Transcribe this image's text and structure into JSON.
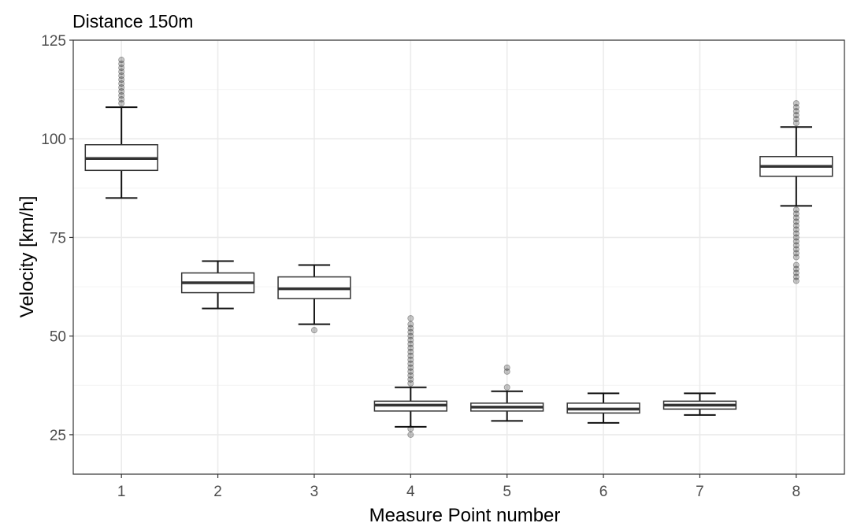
{
  "chart_data": {
    "type": "boxplot",
    "title": "Distance 150m",
    "xlabel": "Measure Point number",
    "ylabel": "Velocity [km/h]",
    "categories": [
      "1",
      "2",
      "3",
      "4",
      "5",
      "6",
      "7",
      "8"
    ],
    "ylim": [
      15,
      125
    ],
    "yticks": [
      25,
      50,
      75,
      100,
      125
    ],
    "yticks_minor": [
      37.5,
      62.5,
      87.5,
      112.5
    ],
    "grid": true,
    "legend": "none",
    "boxes": [
      {
        "category": "1",
        "q1": 92,
        "median": 95,
        "q3": 98.5,
        "whisker_low": 85,
        "whisker_high": 108,
        "outliers": [
          109,
          110,
          111,
          112,
          113,
          114,
          115,
          116,
          117,
          118,
          119,
          120
        ]
      },
      {
        "category": "2",
        "q1": 61,
        "median": 63.5,
        "q3": 66,
        "whisker_low": 57,
        "whisker_high": 69,
        "outliers": []
      },
      {
        "category": "3",
        "q1": 59.5,
        "median": 62,
        "q3": 65,
        "whisker_low": 53,
        "whisker_high": 68,
        "outliers": [
          51.5
        ]
      },
      {
        "category": "4",
        "q1": 31,
        "median": 32.5,
        "q3": 33.5,
        "whisker_low": 27,
        "whisker_high": 37,
        "outliers": [
          25,
          26.5,
          38,
          39,
          40,
          41,
          42,
          43,
          44,
          45,
          46,
          47,
          48,
          49,
          50,
          51,
          52,
          53,
          54.5
        ]
      },
      {
        "category": "5",
        "q1": 31,
        "median": 32,
        "q3": 33,
        "whisker_low": 28.5,
        "whisker_high": 36,
        "outliers": [
          37,
          41,
          42
        ]
      },
      {
        "category": "6",
        "q1": 30.5,
        "median": 31.5,
        "q3": 33,
        "whisker_low": 28,
        "whisker_high": 35.5,
        "outliers": []
      },
      {
        "category": "7",
        "q1": 31.5,
        "median": 32.5,
        "q3": 33.5,
        "whisker_low": 30,
        "whisker_high": 35.5,
        "outliers": []
      },
      {
        "category": "8",
        "q1": 90.5,
        "median": 93,
        "q3": 95.5,
        "whisker_low": 83,
        "whisker_high": 103,
        "outliers": [
          64,
          65,
          66,
          67,
          68,
          70,
          71,
          72,
          73,
          74,
          75,
          76,
          77,
          78,
          79,
          80,
          81,
          82,
          104,
          105,
          106,
          107,
          108,
          109
        ]
      }
    ]
  }
}
